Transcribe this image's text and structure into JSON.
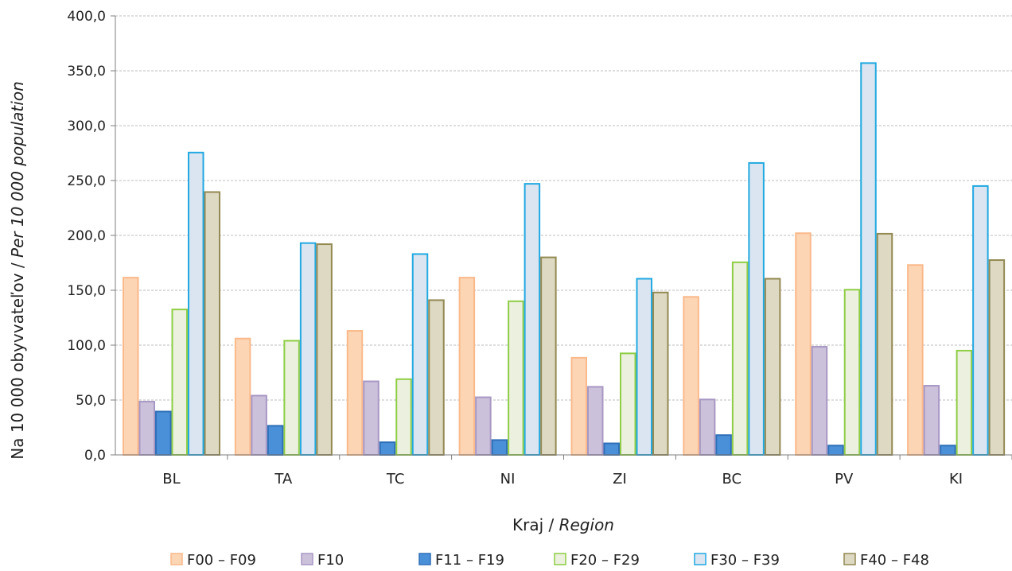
{
  "chart_data": {
    "type": "bar",
    "categories": [
      "BL",
      "TA",
      "TC",
      "NI",
      "ZI",
      "BC",
      "PV",
      "KI"
    ],
    "series": [
      {
        "name": "F00 – F09",
        "fill": "#fcd5b5",
        "stroke": "#fab98a",
        "values": [
          161.5,
          106.0,
          113.0,
          161.5,
          88.5,
          144.0,
          202.0,
          173.0
        ]
      },
      {
        "name": "F10",
        "fill": "#ccc1da",
        "stroke": "#a797c4",
        "values": [
          48.5,
          54.0,
          67.0,
          52.5,
          62.0,
          50.5,
          98.5,
          63.0
        ]
      },
      {
        "name": "F11 – F19",
        "fill": "#4a90d9",
        "stroke": "#2f6fb7",
        "values": [
          39.5,
          26.5,
          11.5,
          13.5,
          10.5,
          18.0,
          8.5,
          8.5
        ]
      },
      {
        "name": "F20 – F29",
        "fill": "#ebf1de",
        "stroke": "#8fcd45",
        "values": [
          132.5,
          104.0,
          69.0,
          140.0,
          92.5,
          175.5,
          150.5,
          95.0
        ]
      },
      {
        "name": "F30 – F39",
        "fill": "#dbe5f1",
        "stroke": "#21a9e1",
        "values": [
          275.5,
          193.0,
          183.0,
          247.0,
          160.5,
          266.0,
          357.0,
          245.0
        ]
      },
      {
        "name": "F40 – F48",
        "fill": "#ddd9c3",
        "stroke": "#938953",
        "values": [
          239.5,
          192.0,
          141.0,
          180.0,
          148.0,
          160.5,
          201.5,
          177.5
        ]
      }
    ],
    "ylim": [
      0,
      400
    ],
    "yticks": [
      "0,0",
      "50,0",
      "100,0",
      "150,0",
      "200,0",
      "250,0",
      "300,0",
      "350,0",
      "400,0"
    ],
    "ylabel_main": "Na 10 000 obyvvateľov / ",
    "ylabel_em": "Per 10 000 population",
    "xlabel_main": "Kraj / ",
    "xlabel_em": "Region",
    "grid": true,
    "legend_position": "bottom"
  }
}
